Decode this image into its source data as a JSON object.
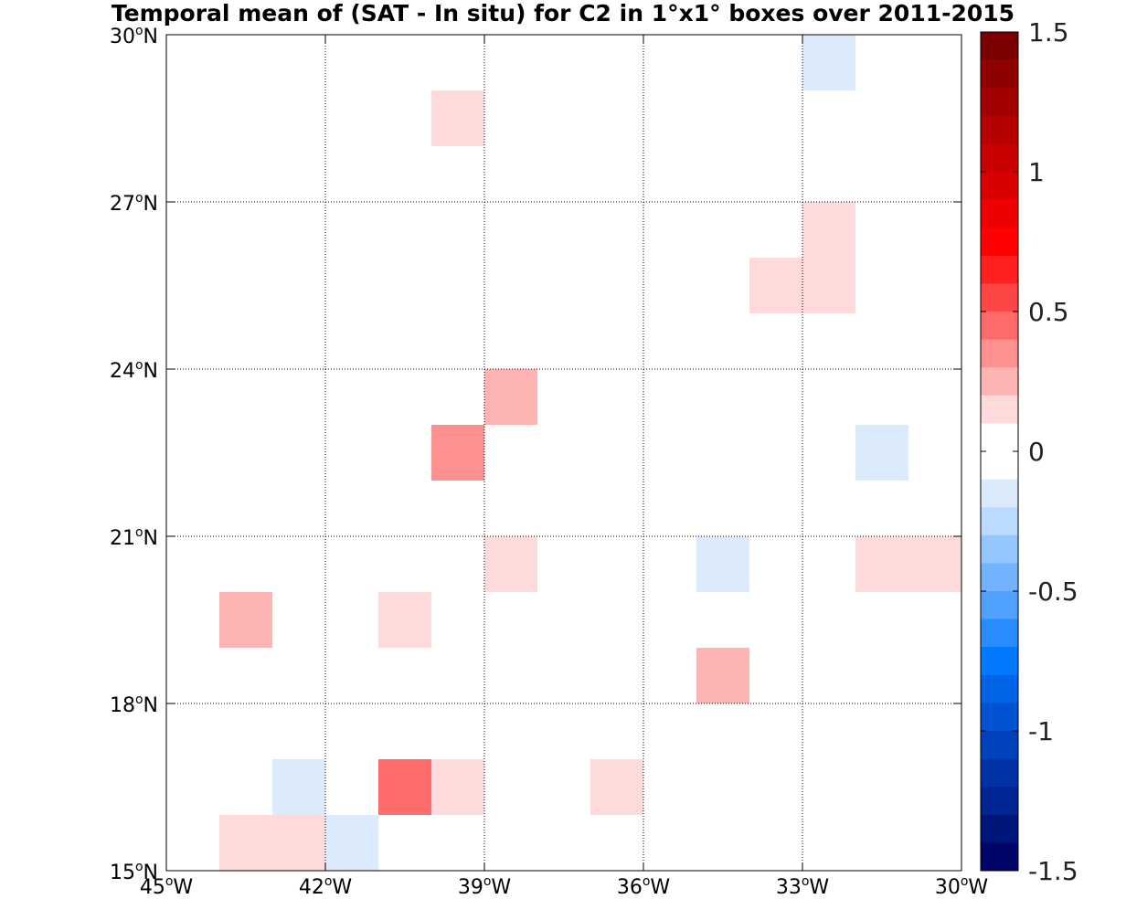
{
  "chart_data": {
    "type": "heatmap",
    "title": "Temporal mean of (SAT - In situ) for C2 in 1°x1° boxes over 2011-2015",
    "xlabel": "",
    "ylabel": "",
    "xlim": [
      -45,
      -30
    ],
    "ylim": [
      15,
      30
    ],
    "grid": true,
    "x_ticks": [
      {
        "value": -45,
        "deg": "45",
        "hemi": "W"
      },
      {
        "value": -42,
        "deg": "42",
        "hemi": "W"
      },
      {
        "value": -39,
        "deg": "39",
        "hemi": "W"
      },
      {
        "value": -36,
        "deg": "36",
        "hemi": "W"
      },
      {
        "value": -33,
        "deg": "33",
        "hemi": "W"
      },
      {
        "value": -30,
        "deg": "30",
        "hemi": "W"
      }
    ],
    "y_ticks": [
      {
        "value": 15,
        "deg": "15",
        "hemi": "N"
      },
      {
        "value": 18,
        "deg": "18",
        "hemi": "N"
      },
      {
        "value": 21,
        "deg": "21",
        "hemi": "N"
      },
      {
        "value": 24,
        "deg": "24",
        "hemi": "N"
      },
      {
        "value": 27,
        "deg": "27",
        "hemi": "N"
      },
      {
        "value": 30,
        "deg": "30",
        "hemi": "N"
      }
    ],
    "cells": [
      {
        "lon": -33,
        "lat": 29,
        "value": -0.1
      },
      {
        "lon": -40,
        "lat": 28,
        "value": 0.1
      },
      {
        "lon": -33,
        "lat": 26,
        "value": 0.1
      },
      {
        "lon": -34,
        "lat": 25,
        "value": 0.1
      },
      {
        "lon": -33,
        "lat": 25,
        "value": 0.1
      },
      {
        "lon": -39,
        "lat": 23,
        "value": 0.25
      },
      {
        "lon": -40,
        "lat": 22,
        "value": 0.35
      },
      {
        "lon": -32,
        "lat": 22,
        "value": -0.1
      },
      {
        "lon": -39,
        "lat": 20,
        "value": 0.1
      },
      {
        "lon": -35,
        "lat": 20,
        "value": -0.1
      },
      {
        "lon": -32,
        "lat": 20,
        "value": 0.1
      },
      {
        "lon": -31,
        "lat": 20,
        "value": 0.1
      },
      {
        "lon": -44,
        "lat": 19,
        "value": 0.25
      },
      {
        "lon": -41,
        "lat": 19,
        "value": 0.1
      },
      {
        "lon": -35,
        "lat": 18,
        "value": 0.25
      },
      {
        "lon": -43,
        "lat": 16,
        "value": -0.1
      },
      {
        "lon": -41,
        "lat": 16,
        "value": 0.45
      },
      {
        "lon": -40,
        "lat": 16,
        "value": 0.1
      },
      {
        "lon": -37,
        "lat": 16,
        "value": 0.1
      },
      {
        "lon": -44,
        "lat": 15,
        "value": 0.1
      },
      {
        "lon": -43,
        "lat": 15,
        "value": 0.1
      },
      {
        "lon": -42,
        "lat": 15,
        "value": -0.1
      }
    ],
    "colorbar": {
      "min": -1.5,
      "max": 1.5,
      "ticks": [
        {
          "value": 1.5,
          "label": "1.5"
        },
        {
          "value": 1.0,
          "label": "1"
        },
        {
          "value": 0.5,
          "label": "0.5"
        },
        {
          "value": 0.0,
          "label": "0"
        },
        {
          "value": -0.5,
          "label": "-0.5"
        },
        {
          "value": -1.0,
          "label": "-1"
        },
        {
          "value": -1.5,
          "label": "-1.5"
        }
      ],
      "colors_top_to_bottom": [
        "#7a0000",
        "#8f0000",
        "#a10000",
        "#b40000",
        "#c70000",
        "#da0000",
        "#ee0000",
        "#ff0000",
        "#ff2020",
        "#ff4646",
        "#ff6a6a",
        "#ff9090",
        "#ffb4b4",
        "#ffdada",
        "#ffffff",
        "#ffffff",
        "#dcebfc",
        "#badaff",
        "#96c6ff",
        "#73b2ff",
        "#4fa0ff",
        "#2a8dff",
        "#0078ff",
        "#0064e6",
        "#0052d0",
        "#0042bb",
        "#0032a6",
        "#002491",
        "#00157a",
        "#000466"
      ]
    }
  }
}
